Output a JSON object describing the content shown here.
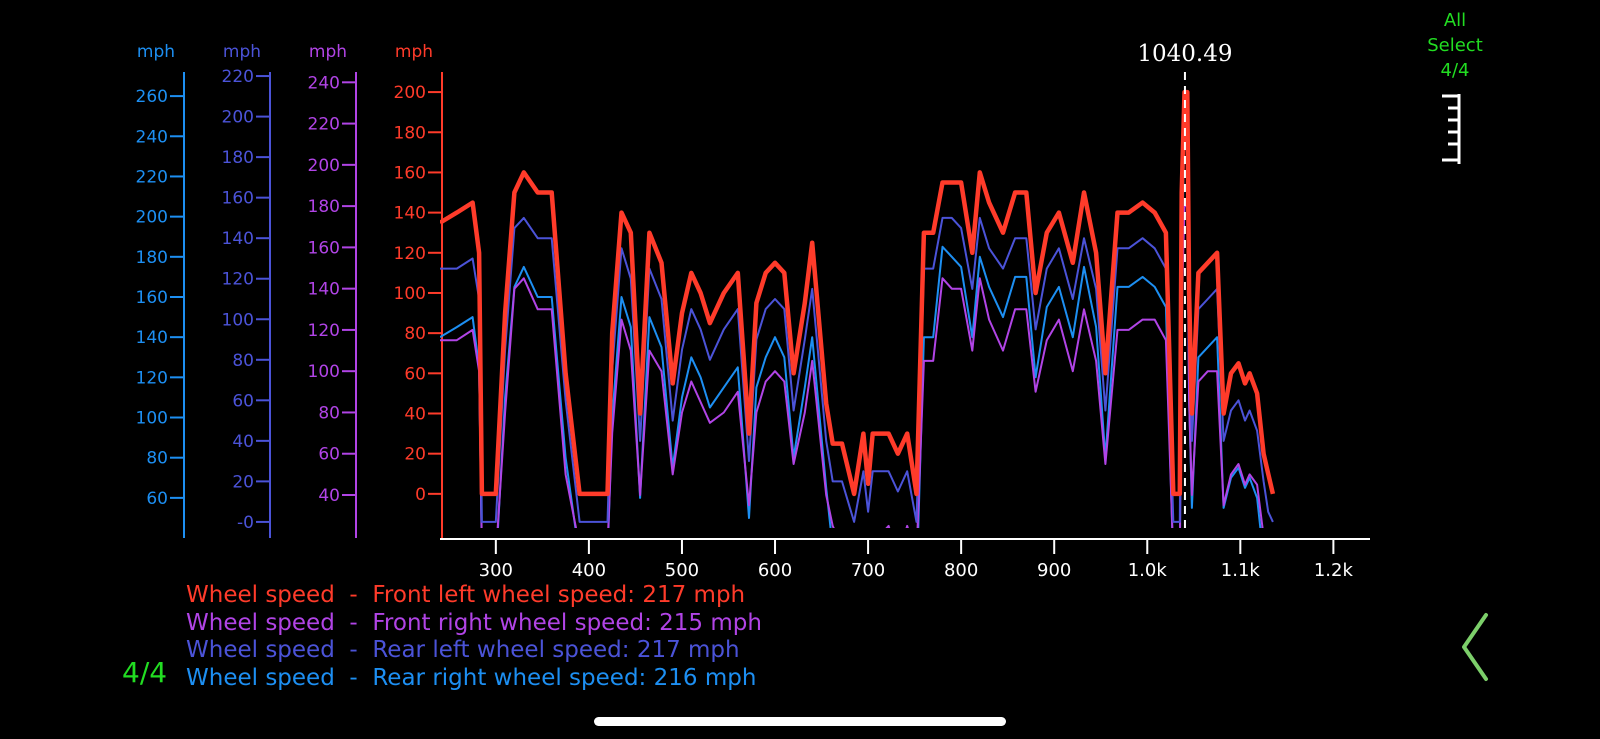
{
  "colors": {
    "front_left": "#ff3b2a",
    "front_right": "#b144e6",
    "rear_left": "#4b53d8",
    "rear_right": "#1d8ff2",
    "accent_green": "#22dd22",
    "back_green": "#7ccf6a",
    "axis_white": "#ffffff",
    "background": "#000000"
  },
  "selector": {
    "line1": "All",
    "line2": "Select",
    "count": "4/4"
  },
  "page_counter": "4/4",
  "cursor_label": "1040.49",
  "legend": [
    {
      "prefix": "Wheel speed",
      "sep": "-",
      "label": "Front left wheel speed: 217 mph",
      "color": "#ff3b2a"
    },
    {
      "prefix": "Wheel speed",
      "sep": "-",
      "label": "Front right wheel speed: 215 mph",
      "color": "#b144e6"
    },
    {
      "prefix": "Wheel speed",
      "sep": "-",
      "label": "Rear left wheel speed: 217 mph",
      "color": "#4b53d8"
    },
    {
      "prefix": "Wheel speed",
      "sep": "-",
      "label": "Rear right wheel speed: 216 mph",
      "color": "#1d8ff2"
    }
  ],
  "icons": {
    "ruler": "ruler-icon",
    "back": "chevron-left-icon"
  },
  "chart_data": {
    "type": "line",
    "title": "",
    "xlabel": "",
    "xlim": [
      240,
      1220
    ],
    "xticks": [
      300,
      400,
      500,
      600,
      700,
      800,
      900,
      1000,
      1100,
      1200
    ],
    "xtick_labels": [
      "300",
      "400",
      "500",
      "600",
      "700",
      "800",
      "900",
      "1.0k",
      "1.1k",
      "1.2k"
    ],
    "cursor_x": 1040.49,
    "grid": false,
    "legend_position": "bottom-left",
    "y_axes": [
      {
        "id": "rr",
        "unit": "mph",
        "color": "#1d8ff2",
        "ylim": [
          45,
          272
        ],
        "ticks": [
          60,
          80,
          100,
          120,
          140,
          160,
          180,
          200,
          220,
          240,
          260
        ],
        "tick_labels": [
          "60",
          "80",
          "100",
          "120",
          "140",
          "160",
          "180",
          "200",
          "220",
          "240",
          "260"
        ]
      },
      {
        "id": "rl",
        "unit": "mph",
        "color": "#4b53d8",
        "ylim": [
          -3,
          222
        ],
        "ticks": [
          0,
          20,
          40,
          60,
          80,
          100,
          120,
          140,
          160,
          180,
          200,
          220
        ],
        "tick_labels": [
          "-0",
          "20",
          "40",
          "60",
          "80",
          "100",
          "120",
          "140",
          "160",
          "180",
          "200",
          "220"
        ]
      },
      {
        "id": "fr",
        "unit": "mph",
        "color": "#b144e6",
        "ylim": [
          24,
          245
        ],
        "ticks": [
          40,
          60,
          80,
          100,
          120,
          140,
          160,
          180,
          200,
          220,
          240
        ],
        "tick_labels": [
          "40",
          "60",
          "80",
          "100",
          "120",
          "140",
          "160",
          "180",
          "200",
          "220",
          "240"
        ]
      },
      {
        "id": "fl",
        "unit": "mph",
        "color": "#ff3b2a",
        "ylim": [
          -17,
          210
        ],
        "ticks": [
          0,
          20,
          40,
          60,
          80,
          100,
          120,
          140,
          160,
          180,
          200
        ],
        "tick_labels": [
          "0",
          "20",
          "40",
          "60",
          "80",
          "100",
          "120",
          "140",
          "160",
          "180",
          "200"
        ]
      }
    ],
    "x": [
      240,
      258,
      275,
      282,
      285,
      292,
      300,
      310,
      320,
      330,
      345,
      360,
      375,
      390,
      410,
      420,
      425,
      435,
      445,
      455,
      465,
      478,
      490,
      500,
      510,
      520,
      530,
      545,
      560,
      572,
      580,
      590,
      600,
      610,
      620,
      632,
      640,
      655,
      662,
      672,
      685,
      695,
      700,
      705,
      712,
      722,
      732,
      742,
      752,
      760,
      770,
      780,
      790,
      800,
      812,
      820,
      830,
      845,
      858,
      870,
      880,
      892,
      905,
      920,
      932,
      945,
      955,
      968,
      980,
      995,
      1008,
      1020,
      1028,
      1035,
      1037,
      1040,
      1043,
      1045,
      1048,
      1055,
      1065,
      1075,
      1082,
      1090,
      1098,
      1105,
      1110,
      1118,
      1125,
      1130,
      1135
    ],
    "series": [
      {
        "name": "Front left wheel speed",
        "color": "#ff3b2a",
        "axis": "fl",
        "values": [
          135,
          140,
          145,
          120,
          0,
          0,
          0,
          90,
          150,
          160,
          150,
          150,
          60,
          0,
          0,
          0,
          80,
          140,
          130,
          40,
          130,
          115,
          55,
          90,
          110,
          100,
          85,
          100,
          110,
          30,
          95,
          110,
          115,
          110,
          60,
          95,
          125,
          45,
          25,
          25,
          0,
          30,
          5,
          30,
          30,
          30,
          20,
          30,
          0,
          130,
          130,
          155,
          155,
          155,
          120,
          160,
          145,
          130,
          150,
          150,
          100,
          130,
          140,
          115,
          150,
          120,
          60,
          140,
          140,
          145,
          140,
          130,
          0,
          0,
          150,
          200,
          200,
          100,
          40,
          110,
          115,
          120,
          40,
          60,
          65,
          55,
          60,
          50,
          20,
          10,
          0
        ]
      },
      {
        "name": "Front right wheel speed",
        "color": "#b144e6",
        "axis": "fr",
        "values": [
          115,
          115,
          120,
          100,
          15,
          10,
          10,
          80,
          140,
          145,
          130,
          130,
          50,
          15,
          15,
          15,
          70,
          125,
          110,
          40,
          110,
          100,
          50,
          80,
          95,
          85,
          75,
          80,
          90,
          35,
          80,
          95,
          100,
          95,
          55,
          80,
          105,
          40,
          25,
          15,
          10,
          20,
          10,
          20,
          20,
          25,
          10,
          25,
          10,
          105,
          105,
          145,
          140,
          140,
          110,
          145,
          125,
          110,
          130,
          130,
          90,
          115,
          125,
          100,
          130,
          105,
          55,
          120,
          120,
          125,
          125,
          115,
          10,
          10,
          130,
          180,
          180,
          85,
          40,
          95,
          100,
          100,
          35,
          50,
          55,
          45,
          50,
          45,
          20,
          10,
          5
        ]
      },
      {
        "name": "Rear left wheel speed",
        "color": "#4b53d8",
        "axis": "rl",
        "values": [
          125,
          125,
          130,
          110,
          0,
          0,
          0,
          85,
          145,
          150,
          140,
          140,
          60,
          0,
          0,
          0,
          75,
          135,
          120,
          40,
          125,
          110,
          50,
          85,
          105,
          95,
          80,
          95,
          105,
          30,
          90,
          105,
          110,
          105,
          55,
          90,
          115,
          40,
          20,
          20,
          0,
          25,
          5,
          25,
          25,
          25,
          15,
          25,
          0,
          125,
          125,
          150,
          150,
          145,
          115,
          150,
          135,
          125,
          140,
          140,
          95,
          125,
          135,
          110,
          140,
          115,
          55,
          135,
          135,
          140,
          135,
          125,
          0,
          0,
          145,
          190,
          190,
          95,
          40,
          105,
          110,
          115,
          40,
          55,
          60,
          50,
          55,
          45,
          20,
          5,
          0
        ]
      },
      {
        "name": "Rear right wheel speed",
        "color": "#1d8ff2",
        "axis": "rr",
        "values": [
          140,
          145,
          150,
          125,
          30,
          25,
          25,
          110,
          165,
          175,
          160,
          160,
          80,
          30,
          30,
          30,
          100,
          160,
          145,
          60,
          150,
          135,
          75,
          110,
          130,
          120,
          105,
          115,
          125,
          50,
          115,
          130,
          140,
          130,
          80,
          115,
          140,
          65,
          35,
          25,
          15,
          40,
          20,
          40,
          40,
          40,
          25,
          40,
          15,
          140,
          140,
          185,
          180,
          175,
          140,
          180,
          165,
          150,
          170,
          170,
          120,
          155,
          165,
          140,
          175,
          145,
          80,
          165,
          165,
          170,
          165,
          155,
          25,
          25,
          175,
          245,
          245,
          110,
          55,
          130,
          135,
          140,
          55,
          70,
          75,
          65,
          70,
          60,
          30,
          15,
          10
        ]
      }
    ]
  }
}
